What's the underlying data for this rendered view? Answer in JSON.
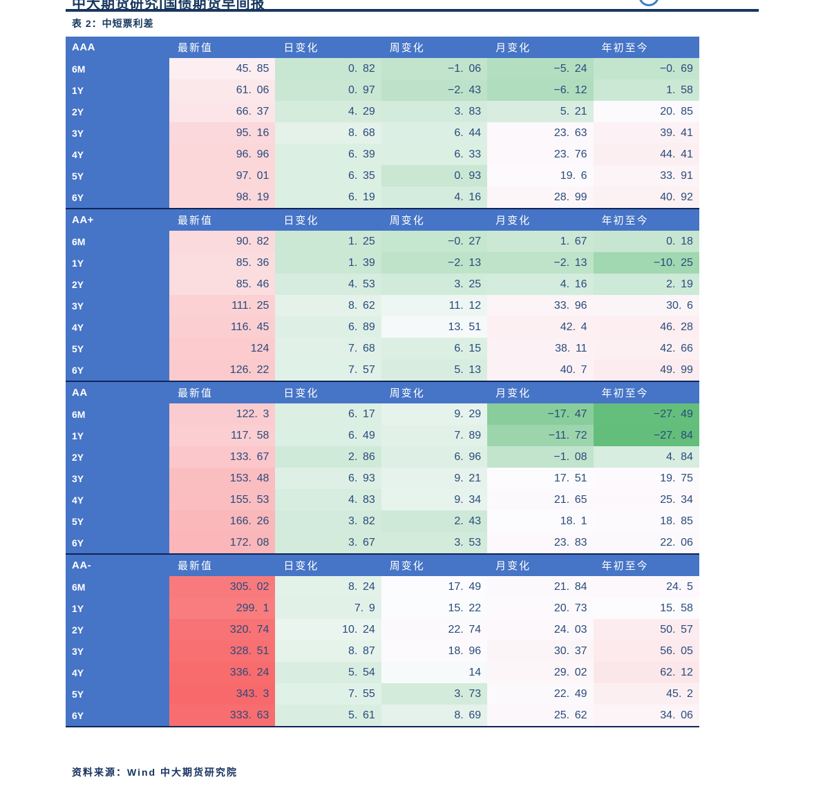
{
  "page": {
    "title": "中大期货研究|国债期货早间报",
    "caption": "表 2：中短票利差",
    "source": "资料来源：Wind 中大期货研究院"
  },
  "table": {
    "columns": [
      "最新值",
      "日变化",
      "周变化",
      "月变化",
      "年初至今"
    ],
    "tenors": [
      "6M",
      "1Y",
      "2Y",
      "3Y",
      "4Y",
      "5Y",
      "6Y"
    ],
    "sections": [
      {
        "rating": "AAA",
        "rows": [
          [
            45.85,
            0.82,
            -1.06,
            -5.24,
            -0.69
          ],
          [
            61.06,
            0.97,
            -2.43,
            -6.12,
            1.58
          ],
          [
            66.37,
            4.29,
            3.83,
            5.21,
            20.85
          ],
          [
            95.16,
            8.68,
            6.44,
            23.63,
            39.41
          ],
          [
            96.96,
            6.39,
            6.33,
            23.76,
            44.41
          ],
          [
            97.01,
            6.35,
            0.93,
            19.6,
            33.91
          ],
          [
            98.19,
            6.19,
            4.16,
            28.99,
            40.92
          ]
        ]
      },
      {
        "rating": "AA+",
        "rows": [
          [
            90.82,
            1.25,
            -0.27,
            1.67,
            0.18
          ],
          [
            85.36,
            1.39,
            -2.13,
            -2.13,
            -10.25
          ],
          [
            85.46,
            4.53,
            3.25,
            4.16,
            2.19
          ],
          [
            111.25,
            8.62,
            11.12,
            33.96,
            30.6
          ],
          [
            116.45,
            6.89,
            13.51,
            42.4,
            46.28
          ],
          [
            124,
            7.68,
            6.15,
            38.11,
            42.66
          ],
          [
            126.22,
            7.57,
            5.13,
            40.7,
            49.99
          ]
        ]
      },
      {
        "rating": "AA",
        "rows": [
          [
            122.3,
            6.17,
            9.29,
            -17.47,
            -27.49
          ],
          [
            117.58,
            6.49,
            7.89,
            -11.72,
            -27.84
          ],
          [
            133.67,
            2.86,
            6.96,
            -1.08,
            4.84
          ],
          [
            153.48,
            6.93,
            9.21,
            17.51,
            19.75
          ],
          [
            155.53,
            4.83,
            9.34,
            21.65,
            25.34
          ],
          [
            166.26,
            3.82,
            2.43,
            18.1,
            18.85
          ],
          [
            172.08,
            3.67,
            3.53,
            23.83,
            22.06
          ]
        ]
      },
      {
        "rating": "AA-",
        "rows": [
          [
            305.02,
            8.24,
            17.49,
            21.84,
            24.5
          ],
          [
            299.1,
            7.9,
            15.22,
            20.73,
            15.58
          ],
          [
            320.74,
            10.24,
            22.74,
            24.03,
            50.57
          ],
          [
            328.51,
            8.87,
            18.96,
            30.37,
            56.05
          ],
          [
            336.24,
            5.54,
            14,
            29.02,
            62.12
          ],
          [
            343.3,
            7.55,
            3.73,
            22.49,
            45.2
          ],
          [
            333.63,
            5.61,
            8.69,
            25.62,
            34.06
          ]
        ]
      }
    ]
  },
  "colors": {
    "header_blue": "#4674C6",
    "navy_text": "#17375E",
    "number_navy": "#2A4A7B",
    "section_separator": "#0F2557",
    "scale_min_color": "#63BE7B",
    "scale_mid_color": "#FCFCFF",
    "scale_max_color": "#F8696B"
  }
}
